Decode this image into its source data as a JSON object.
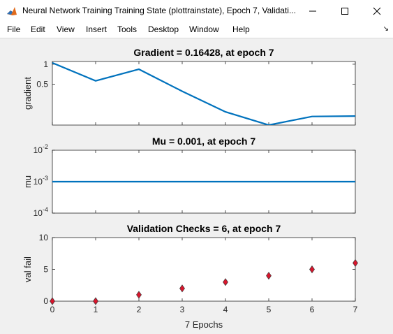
{
  "window": {
    "title": "Neural Network Training Training State (plottrainstate), Epoch 7, Validati...",
    "menu": [
      "File",
      "Edit",
      "View",
      "Insert",
      "Tools",
      "Desktop",
      "Window",
      "Help"
    ]
  },
  "colors": {
    "line": "#0072bd",
    "marker_fill": "#d9152c",
    "axes_bg": "#ffffff",
    "figure_bg": "#f0f0f0"
  },
  "chart_data": [
    {
      "type": "line",
      "title": "Gradient = 0.16428, at epoch 7",
      "xlabel": "",
      "ylabel": "gradient",
      "yscale": "log",
      "x": [
        0,
        1,
        2,
        3,
        4,
        5,
        6,
        7
      ],
      "series": [
        {
          "values": [
            1.05,
            0.56,
            0.84,
            0.39,
            0.19,
            0.12,
            0.162,
            0.16428
          ]
        }
      ],
      "xlim": [
        0,
        7
      ],
      "ylim": [
        0.12,
        1.1
      ],
      "yticks": [
        0.5,
        1
      ],
      "ytick_labels": [
        "0.5",
        "1"
      ],
      "xticks": [
        0,
        1,
        2,
        3,
        4,
        5,
        6,
        7
      ],
      "grid": false
    },
    {
      "type": "line",
      "title": "Mu = 0.001, at epoch 7",
      "xlabel": "",
      "ylabel": "mu",
      "yscale": "log",
      "x": [
        0,
        1,
        2,
        3,
        4,
        5,
        6,
        7
      ],
      "series": [
        {
          "values": [
            0.001,
            0.001,
            0.001,
            0.001,
            0.001,
            0.001,
            0.001,
            0.001
          ]
        }
      ],
      "xlim": [
        0,
        7
      ],
      "ylim": [
        0.0001,
        0.01
      ],
      "yticks": [
        0.0001,
        0.001,
        0.01
      ],
      "ytick_labels": [
        {
          "base": "10",
          "exp": "-4"
        },
        {
          "base": "10",
          "exp": "-3"
        },
        {
          "base": "10",
          "exp": "-2"
        }
      ],
      "xticks": [
        0,
        1,
        2,
        3,
        4,
        5,
        6,
        7
      ],
      "grid": false
    },
    {
      "type": "scatter",
      "title": "Validation Checks = 6, at epoch 7",
      "xlabel": "7 Epochs",
      "ylabel": "val fail",
      "x": [
        0,
        1,
        2,
        3,
        4,
        5,
        6,
        7
      ],
      "series": [
        {
          "values": [
            0,
            0,
            1,
            2,
            3,
            4,
            5,
            6
          ]
        }
      ],
      "xlim": [
        0,
        7
      ],
      "ylim": [
        0,
        10
      ],
      "yticks": [
        0,
        5,
        10
      ],
      "ytick_labels": [
        "0",
        "5",
        "10"
      ],
      "xticks": [
        0,
        1,
        2,
        3,
        4,
        5,
        6,
        7
      ],
      "xtick_labels": [
        "0",
        "1",
        "2",
        "3",
        "4",
        "5",
        "6",
        "7"
      ],
      "grid": false
    }
  ]
}
